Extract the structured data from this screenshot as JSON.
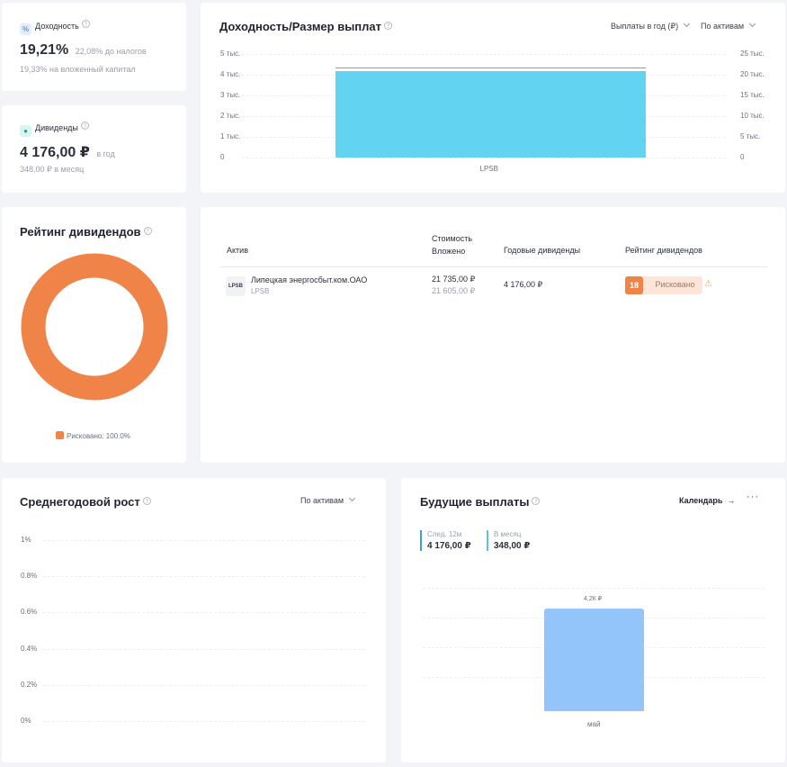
{
  "yield_card": {
    "label": "Доходность",
    "icon": "percent-icon",
    "value": "19,21%",
    "pretax": "22,08% до налогов",
    "invested": "19,33% на вложенный капитал"
  },
  "dividends_card": {
    "label": "Дивиденды",
    "icon": "money-icon",
    "value": "4 176,00 ₽",
    "period": "в год",
    "monthly": "348,00 ₽ в месяц"
  },
  "yield_chart": {
    "title": "Доходность/Размер выплат",
    "filter1": "Выплаты в год (₽)",
    "filter2": "По активам",
    "left_ticks": [
      "5 тыс.",
      "4 тыс.",
      "3 тыс.",
      "2 тыс.",
      "1 тыс.",
      "0"
    ],
    "right_ticks": [
      "25 тыс.",
      "20 тыс.",
      "15 тыс.",
      "10 тыс.",
      "5 тыс.",
      "0"
    ],
    "category": "LPSB"
  },
  "rating_card": {
    "title": "Рейтинг дивидендов",
    "legend": "Рисковано: 100.0%",
    "donut_color": "#f08448"
  },
  "assets_table": {
    "headers": {
      "asset": "Актив",
      "cost": "Стоимость",
      "invested": "Вложено",
      "annual": "Годовые дивиденды",
      "rating": "Рейтинг дивидендов"
    },
    "rows": [
      {
        "logo": "LPSB",
        "name": "Липецкая энергосбыт.ком.ОАО",
        "ticker": "LPSB",
        "cost": "21 735,00 ₽",
        "invested": "21 605,00 ₽",
        "annual": "4 176,00 ₽",
        "score": "18",
        "rating": "Рисковано"
      }
    ]
  },
  "growth_card": {
    "title": "Среднегодовой рост",
    "filter": "По активам",
    "ticks": [
      "1%",
      "0.8%",
      "0.6%",
      "0.4%",
      "0.2%",
      "0%"
    ]
  },
  "future_card": {
    "title": "Будущие выплаты",
    "calendar": "Календарь",
    "next12_label": "След. 12м",
    "next12_value": "4 176,00 ₽",
    "month_label": "В месяц",
    "month_value": "348,00 ₽",
    "bar_label": "4,2К ₽",
    "bar_month": "май"
  },
  "chart_data": [
    {
      "type": "bar",
      "categories": [
        "LPSB"
      ],
      "series": [
        {
          "values": [
            4176
          ]
        }
      ],
      "ylim": [
        0,
        5000
      ],
      "y2lim": [
        0,
        25000
      ],
      "grid": true
    },
    {
      "type": "pie",
      "categories": [
        "Рисковано"
      ],
      "values": [
        100.0
      ]
    },
    {
      "type": "line",
      "categories": [],
      "values": [],
      "ylim": [
        0,
        1
      ]
    },
    {
      "type": "bar",
      "categories": [
        "май"
      ],
      "values": [
        4176
      ],
      "data_labels": [
        "4,2К ₽"
      ]
    }
  ]
}
